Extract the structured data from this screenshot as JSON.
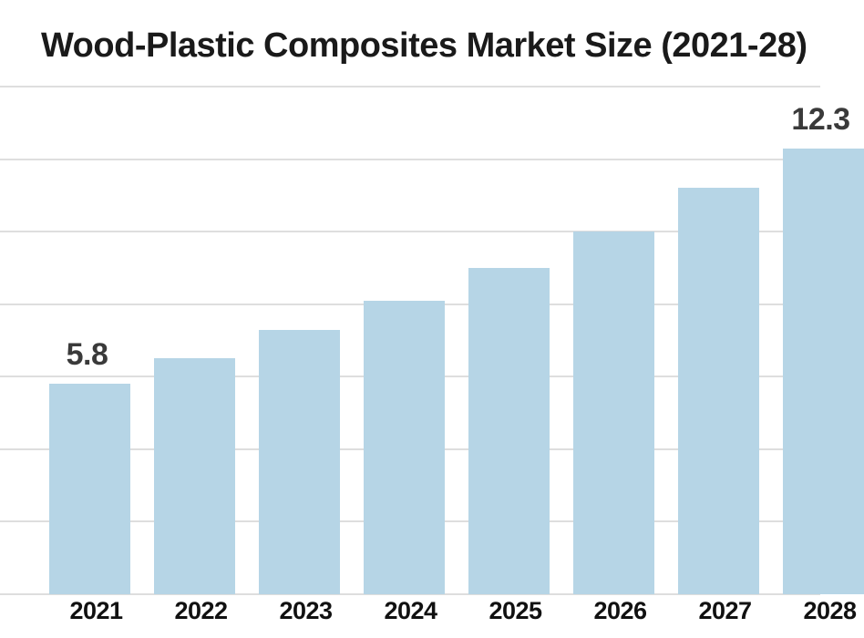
{
  "page": {
    "title": "Wood-Plastic Composites Market Size (2021-28)"
  },
  "chart_data": {
    "type": "bar",
    "title": "Wood-Plastic Composites Market Size (2021-28)",
    "categories": [
      "2021",
      "2022",
      "2023",
      "2024",
      "2025",
      "2026",
      "2027",
      "2028"
    ],
    "values": [
      5.8,
      6.5,
      7.3,
      8.1,
      9.0,
      10.0,
      11.2,
      12.3
    ],
    "data_labels": [
      "5.8",
      null,
      null,
      null,
      null,
      null,
      null,
      "12.3"
    ],
    "xlabel": "",
    "ylabel": "",
    "ylim": [
      0,
      14
    ],
    "grid_step": 2,
    "grid": "horizontal",
    "legend": "none",
    "colors": {
      "bar_fill": "#b6d5e6",
      "gridline": "#dedede",
      "title_text": "#1a1a1a",
      "value_label_text": "#3a3a3a",
      "axis_label_text": "#111111",
      "background": "#ffffff"
    }
  }
}
